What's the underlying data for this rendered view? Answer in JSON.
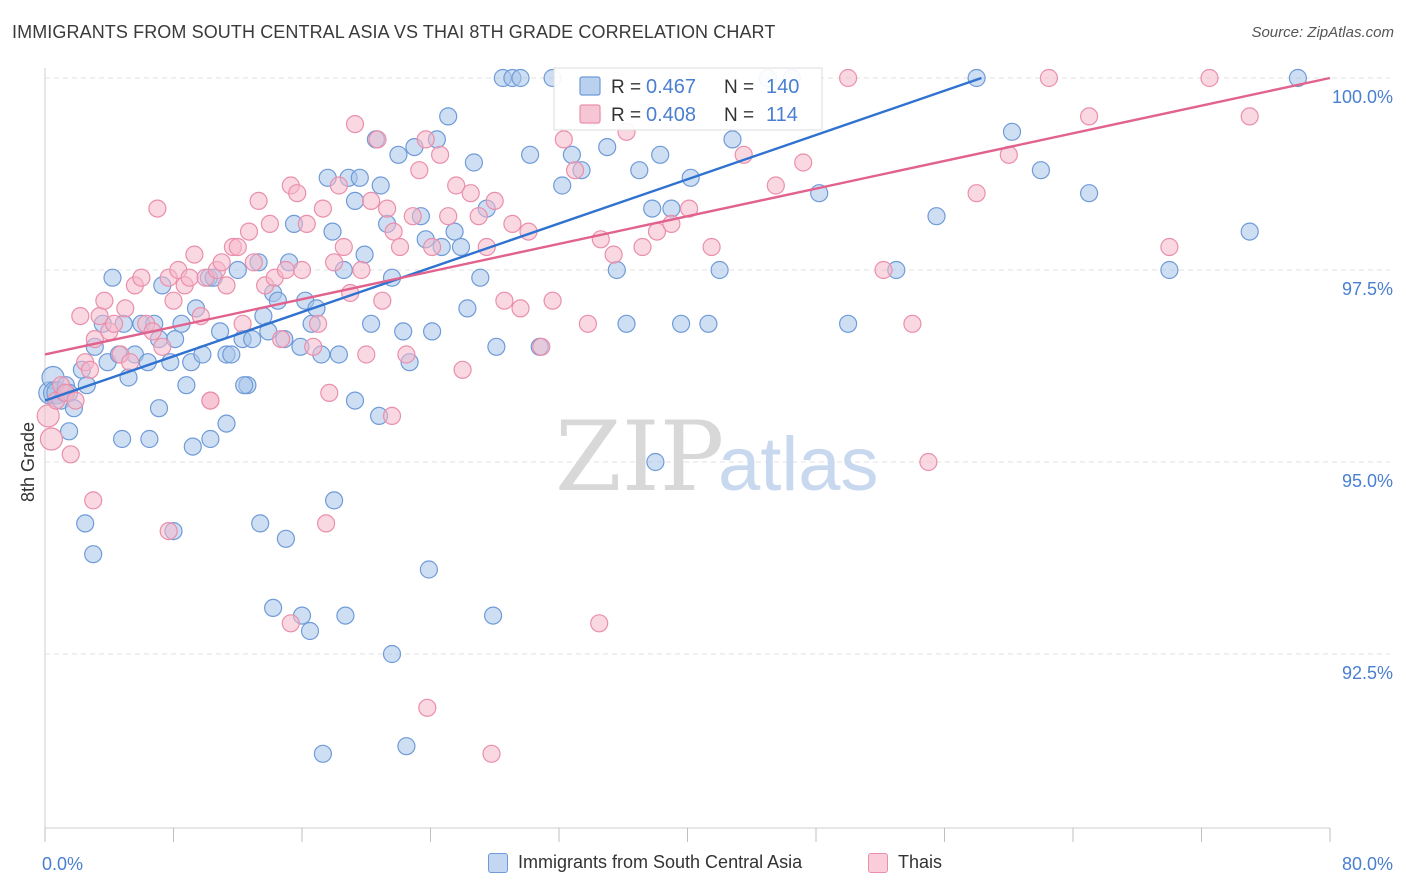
{
  "title": "IMMIGRANTS FROM SOUTH CENTRAL ASIA VS THAI 8TH GRADE CORRELATION CHART",
  "source": "Source: ZipAtlas.com",
  "watermark": {
    "zip": "ZIP",
    "atlas": "atlas"
  },
  "colors": {
    "blue_fill": "#a8c4ea",
    "blue_stroke": "#6f9bd8",
    "blue_line": "#2f72d0",
    "pink_fill": "#f5b8cb",
    "pink_stroke": "#ea8fab",
    "pink_line": "#e2628e",
    "axis_text": "#4a7fcf",
    "grid": "#e1e1e1"
  },
  "legend_top": {
    "rows": [
      {
        "r_label": "R = ",
        "r_value": "0.467",
        "n_label": "N = ",
        "n_value": "140",
        "series": "blue"
      },
      {
        "r_label": "R = ",
        "r_value": "0.408",
        "n_label": "N = ",
        "n_value": "114",
        "series": "pink"
      }
    ]
  },
  "legend_bottom": [
    {
      "label": "Immigrants from South Central Asia",
      "series": "blue"
    },
    {
      "label": "Thais",
      "series": "pink"
    }
  ],
  "chart_data": {
    "type": "scatter",
    "title": "IMMIGRANTS FROM SOUTH CENTRAL ASIA VS THAI 8TH GRADE CORRELATION CHART",
    "xlabel": "",
    "ylabel": "8th Grade",
    "xlim": [
      0,
      80
    ],
    "ylim": [
      90.0,
      100.5
    ],
    "x_tick_labels": [
      "0.0%",
      "80.0%"
    ],
    "y_ticks": [
      92.5,
      95.0,
      97.5,
      100.0
    ],
    "y_tick_labels": [
      "92.5%",
      "95.0%",
      "97.5%",
      "100.0%"
    ],
    "grid": true,
    "legend_position": "top-center",
    "series": [
      {
        "name": "Immigrants from South Central Asia",
        "color": "#6f9bd8",
        "r": 0.467,
        "n": 140,
        "trend": {
          "x": [
            0.0,
            58.3
          ],
          "y": [
            95.8,
            100.0
          ]
        },
        "points": [
          [
            0.3,
            95.9
          ],
          [
            0.5,
            96.1
          ],
          [
            0.6,
            95.9
          ],
          [
            0.8,
            95.9
          ],
          [
            1.0,
            95.8
          ],
          [
            1.2,
            95.9
          ],
          [
            1.3,
            96.0
          ],
          [
            1.5,
            95.9
          ],
          [
            1.8,
            95.7
          ],
          [
            2.3,
            96.2
          ],
          [
            2.6,
            96.0
          ],
          [
            3.1,
            96.5
          ],
          [
            3.6,
            96.8
          ],
          [
            3.9,
            96.3
          ],
          [
            4.2,
            97.4
          ],
          [
            4.6,
            96.4
          ],
          [
            4.9,
            96.8
          ],
          [
            5.2,
            96.1
          ],
          [
            5.6,
            96.4
          ],
          [
            6.0,
            96.8
          ],
          [
            6.4,
            96.3
          ],
          [
            6.8,
            96.8
          ],
          [
            7.1,
            96.6
          ],
          [
            7.3,
            97.3
          ],
          [
            7.8,
            96.3
          ],
          [
            8.1,
            96.6
          ],
          [
            8.5,
            96.8
          ],
          [
            8.8,
            96.0
          ],
          [
            9.1,
            96.3
          ],
          [
            9.4,
            97.0
          ],
          [
            9.8,
            96.4
          ],
          [
            10.2,
            97.4
          ],
          [
            10.5,
            97.4
          ],
          [
            10.9,
            96.7
          ],
          [
            11.3,
            96.4
          ],
          [
            11.6,
            96.4
          ],
          [
            12.0,
            97.5
          ],
          [
            12.3,
            96.6
          ],
          [
            12.6,
            96.0
          ],
          [
            12.9,
            96.6
          ],
          [
            13.3,
            97.6
          ],
          [
            13.6,
            96.9
          ],
          [
            13.9,
            96.7
          ],
          [
            14.2,
            97.2
          ],
          [
            14.5,
            97.1
          ],
          [
            14.9,
            96.6
          ],
          [
            15.2,
            97.6
          ],
          [
            15.5,
            98.1
          ],
          [
            15.9,
            96.5
          ],
          [
            16.2,
            97.1
          ],
          [
            16.6,
            96.8
          ],
          [
            16.9,
            97.0
          ],
          [
            17.2,
            96.4
          ],
          [
            17.6,
            98.7
          ],
          [
            17.9,
            98.0
          ],
          [
            18.3,
            96.4
          ],
          [
            18.6,
            97.5
          ],
          [
            18.9,
            98.7
          ],
          [
            19.3,
            98.4
          ],
          [
            19.6,
            98.7
          ],
          [
            19.9,
            97.7
          ],
          [
            20.3,
            96.8
          ],
          [
            20.6,
            99.2
          ],
          [
            20.9,
            98.6
          ],
          [
            21.3,
            98.1
          ],
          [
            21.6,
            97.4
          ],
          [
            22.0,
            99.0
          ],
          [
            22.3,
            96.7
          ],
          [
            22.7,
            96.3
          ],
          [
            23.0,
            99.1
          ],
          [
            23.4,
            98.2
          ],
          [
            23.7,
            97.9
          ],
          [
            24.1,
            96.7
          ],
          [
            24.4,
            99.2
          ],
          [
            24.7,
            97.8
          ],
          [
            25.1,
            99.5
          ],
          [
            25.5,
            98.0
          ],
          [
            25.9,
            97.8
          ],
          [
            26.3,
            97.0
          ],
          [
            26.7,
            98.9
          ],
          [
            27.1,
            97.4
          ],
          [
            27.5,
            98.3
          ],
          [
            28.1,
            96.5
          ],
          [
            28.5,
            100.0
          ],
          [
            29.1,
            100.0
          ],
          [
            29.6,
            100.0
          ],
          [
            30.2,
            99.0
          ],
          [
            30.8,
            96.5
          ],
          [
            31.6,
            100.0
          ],
          [
            32.2,
            98.6
          ],
          [
            32.8,
            99.0
          ],
          [
            33.4,
            98.8
          ],
          [
            34.1,
            99.5
          ],
          [
            35.0,
            99.1
          ],
          [
            35.6,
            97.5
          ],
          [
            36.2,
            96.8
          ],
          [
            37.0,
            98.8
          ],
          [
            37.8,
            98.3
          ],
          [
            38.3,
            99.0
          ],
          [
            39.0,
            98.3
          ],
          [
            39.6,
            96.8
          ],
          [
            40.2,
            98.7
          ],
          [
            41.3,
            96.8
          ],
          [
            42.0,
            97.5
          ],
          [
            42.8,
            99.2
          ],
          [
            45.0,
            100.0
          ],
          [
            46.5,
            100.0
          ],
          [
            48.2,
            98.5
          ],
          [
            50.0,
            96.8
          ],
          [
            53.0,
            97.5
          ],
          [
            55.5,
            98.2
          ],
          [
            58.0,
            100.0
          ],
          [
            60.2,
            99.3
          ],
          [
            62.0,
            98.8
          ],
          [
            65.0,
            98.5
          ],
          [
            70.0,
            97.5
          ],
          [
            75.0,
            98.0
          ],
          [
            78.0,
            100.0
          ],
          [
            1.5,
            95.4
          ],
          [
            2.5,
            94.2
          ],
          [
            3.0,
            93.8
          ],
          [
            4.8,
            95.3
          ],
          [
            6.5,
            95.3
          ],
          [
            7.1,
            95.7
          ],
          [
            8.0,
            94.1
          ],
          [
            9.2,
            95.2
          ],
          [
            10.3,
            95.3
          ],
          [
            11.3,
            95.5
          ],
          [
            12.4,
            96.0
          ],
          [
            13.4,
            94.2
          ],
          [
            14.2,
            93.1
          ],
          [
            15.0,
            94.0
          ],
          [
            16.0,
            93.0
          ],
          [
            16.5,
            92.8
          ],
          [
            17.3,
            91.2
          ],
          [
            18.0,
            94.5
          ],
          [
            18.7,
            93.0
          ],
          [
            19.3,
            95.8
          ],
          [
            20.8,
            95.6
          ],
          [
            21.6,
            92.5
          ],
          [
            22.5,
            91.3
          ],
          [
            23.9,
            93.6
          ],
          [
            27.9,
            93.0
          ],
          [
            38.0,
            95.0
          ]
        ]
      },
      {
        "name": "Thais",
        "color": "#ea8fab",
        "r": 0.408,
        "n": 114,
        "trend": {
          "x": [
            0.0,
            80.0
          ],
          "y": [
            96.4,
            100.0
          ]
        },
        "points": [
          [
            0.2,
            95.6
          ],
          [
            0.4,
            95.3
          ],
          [
            0.7,
            95.8
          ],
          [
            1.0,
            96.0
          ],
          [
            1.3,
            95.9
          ],
          [
            1.6,
            95.1
          ],
          [
            1.9,
            95.8
          ],
          [
            2.2,
            96.9
          ],
          [
            2.5,
            96.3
          ],
          [
            2.8,
            96.2
          ],
          [
            3.1,
            96.6
          ],
          [
            3.4,
            96.9
          ],
          [
            3.7,
            97.1
          ],
          [
            4.0,
            96.7
          ],
          [
            4.3,
            96.8
          ],
          [
            4.7,
            96.4
          ],
          [
            5.0,
            97.0
          ],
          [
            5.3,
            96.3
          ],
          [
            5.6,
            97.3
          ],
          [
            6.0,
            97.4
          ],
          [
            6.3,
            96.8
          ],
          [
            6.7,
            96.7
          ],
          [
            7.0,
            98.3
          ],
          [
            7.3,
            96.5
          ],
          [
            7.7,
            97.4
          ],
          [
            8.0,
            97.1
          ],
          [
            8.3,
            97.5
          ],
          [
            8.7,
            97.3
          ],
          [
            9.0,
            97.4
          ],
          [
            9.3,
            97.7
          ],
          [
            9.7,
            96.9
          ],
          [
            10.0,
            97.4
          ],
          [
            10.3,
            95.8
          ],
          [
            10.7,
            97.5
          ],
          [
            11.0,
            97.6
          ],
          [
            11.3,
            97.3
          ],
          [
            11.7,
            97.8
          ],
          [
            12.0,
            97.8
          ],
          [
            12.3,
            96.8
          ],
          [
            12.7,
            98.0
          ],
          [
            13.0,
            97.6
          ],
          [
            13.3,
            98.4
          ],
          [
            13.7,
            97.3
          ],
          [
            14.0,
            98.1
          ],
          [
            14.3,
            97.4
          ],
          [
            14.7,
            96.6
          ],
          [
            15.0,
            97.5
          ],
          [
            15.3,
            98.6
          ],
          [
            15.7,
            98.5
          ],
          [
            16.0,
            97.5
          ],
          [
            16.3,
            98.1
          ],
          [
            16.7,
            96.5
          ],
          [
            17.0,
            96.8
          ],
          [
            17.3,
            98.3
          ],
          [
            17.7,
            95.9
          ],
          [
            18.0,
            97.6
          ],
          [
            18.3,
            98.6
          ],
          [
            18.6,
            97.8
          ],
          [
            19.0,
            97.2
          ],
          [
            19.3,
            99.4
          ],
          [
            19.7,
            97.5
          ],
          [
            20.0,
            96.4
          ],
          [
            20.3,
            98.4
          ],
          [
            20.7,
            99.2
          ],
          [
            21.0,
            97.1
          ],
          [
            21.3,
            98.3
          ],
          [
            21.7,
            98.0
          ],
          [
            22.1,
            97.8
          ],
          [
            22.5,
            96.4
          ],
          [
            22.9,
            98.2
          ],
          [
            23.3,
            98.8
          ],
          [
            23.7,
            99.2
          ],
          [
            24.1,
            97.8
          ],
          [
            24.6,
            99.0
          ],
          [
            25.1,
            98.2
          ],
          [
            25.6,
            98.6
          ],
          [
            26.0,
            96.2
          ],
          [
            26.5,
            98.5
          ],
          [
            27.0,
            98.2
          ],
          [
            27.5,
            97.8
          ],
          [
            28.0,
            98.4
          ],
          [
            28.6,
            97.1
          ],
          [
            29.1,
            98.1
          ],
          [
            29.6,
            97.0
          ],
          [
            30.1,
            98.0
          ],
          [
            30.9,
            96.5
          ],
          [
            31.6,
            97.1
          ],
          [
            32.3,
            99.2
          ],
          [
            33.0,
            98.8
          ],
          [
            33.8,
            96.8
          ],
          [
            34.6,
            97.9
          ],
          [
            35.4,
            97.7
          ],
          [
            36.2,
            99.3
          ],
          [
            37.2,
            97.8
          ],
          [
            38.1,
            98.0
          ],
          [
            39.0,
            98.1
          ],
          [
            40.1,
            98.3
          ],
          [
            41.5,
            97.8
          ],
          [
            43.5,
            99.0
          ],
          [
            45.5,
            98.6
          ],
          [
            47.2,
            98.9
          ],
          [
            50.0,
            100.0
          ],
          [
            52.2,
            97.5
          ],
          [
            54.0,
            96.8
          ],
          [
            55.0,
            95.0
          ],
          [
            58.0,
            98.5
          ],
          [
            60.0,
            99.0
          ],
          [
            62.5,
            100.0
          ],
          [
            65.0,
            99.5
          ],
          [
            70.0,
            97.8
          ],
          [
            72.5,
            100.0
          ],
          [
            75.0,
            99.5
          ],
          [
            3.0,
            94.5
          ],
          [
            7.7,
            94.1
          ],
          [
            10.3,
            95.8
          ],
          [
            17.5,
            94.2
          ],
          [
            21.6,
            95.6
          ],
          [
            23.8,
            91.8
          ],
          [
            27.8,
            91.2
          ],
          [
            34.5,
            92.9
          ],
          [
            15.3,
            92.9
          ]
        ]
      }
    ]
  }
}
